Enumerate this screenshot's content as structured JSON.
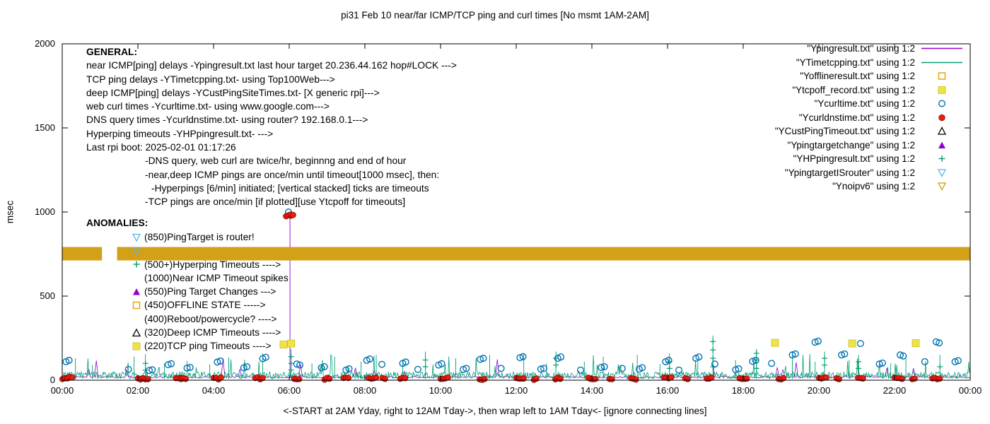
{
  "chart_data": {
    "type": "scatter",
    "title": "pi31 Feb 10  near/far ICMP/TCP ping and curl times [No msmt 1AM-2AM]",
    "xlabel": "<-START at 2AM Yday, right to 12AM Tday->, then wrap left to 1AM Tday<- [ignore connecting lines]",
    "ylabel": "msec",
    "xlim": [
      0,
      24
    ],
    "ylim": [
      0,
      2000
    ],
    "grid": false,
    "legend_position": "inside top-right",
    "x_ticks": [
      {
        "h": 0,
        "label": "00:00"
      },
      {
        "h": 2,
        "label": "02:00"
      },
      {
        "h": 4,
        "label": "04:00"
      },
      {
        "h": 6,
        "label": "06:00"
      },
      {
        "h": 8,
        "label": "08:00"
      },
      {
        "h": 10,
        "label": "10:00"
      },
      {
        "h": 12,
        "label": "12:00"
      },
      {
        "h": 14,
        "label": "14:00"
      },
      {
        "h": 16,
        "label": "16:00"
      },
      {
        "h": 18,
        "label": "18:00"
      },
      {
        "h": 20,
        "label": "20:00"
      },
      {
        "h": 22,
        "label": "22:00"
      },
      {
        "h": 24,
        "label": "00:00"
      }
    ],
    "y_ticks": [
      0,
      500,
      1000,
      1500,
      2000
    ],
    "series": {
      "ping_line": {
        "name": "Ypingresult near ICMP ping delay line",
        "color": "#9400d3",
        "baseline": 14,
        "noise": 9,
        "spikes": [
          [
            6.02,
            985
          ],
          [
            17.22,
            88
          ]
        ]
      },
      "tcp_line": {
        "name": "YTimetcpping TCP ping delay line",
        "color": "#009e73",
        "baseline": 8,
        "noise": 42,
        "spikes": [
          [
            0.35,
            130
          ],
          [
            0.8,
            90
          ],
          [
            1.9,
            140
          ],
          [
            2.2,
            155
          ],
          [
            2.7,
            100
          ],
          [
            3.3,
            115
          ],
          [
            3.9,
            95
          ],
          [
            4.4,
            135
          ],
          [
            5.3,
            160
          ],
          [
            6.05,
            185
          ],
          [
            6.6,
            100
          ],
          [
            7.2,
            140
          ],
          [
            7.9,
            110
          ],
          [
            8.3,
            150
          ],
          [
            9.0,
            100
          ],
          [
            9.6,
            170
          ],
          [
            10.4,
            130
          ],
          [
            11.3,
            150
          ],
          [
            12.2,
            160
          ],
          [
            12.8,
            100
          ],
          [
            13.05,
            170
          ],
          [
            13.8,
            110
          ],
          [
            14.3,
            140
          ],
          [
            15.2,
            150
          ],
          [
            15.8,
            95
          ],
          [
            16.05,
            160
          ],
          [
            16.8,
            110
          ],
          [
            17.2,
            265
          ],
          [
            17.8,
            120
          ],
          [
            18.35,
            185
          ],
          [
            19.3,
            150
          ],
          [
            19.9,
            110
          ],
          [
            20.15,
            170
          ],
          [
            20.8,
            120
          ],
          [
            21.05,
            150
          ],
          [
            21.9,
            100
          ],
          [
            22.3,
            140
          ],
          [
            23.2,
            150
          ]
        ]
      },
      "curl_circles": {
        "name": "Ycurltime web curl times",
        "color": "#0072b2",
        "points": [
          [
            0.1,
            110
          ],
          [
            0.18,
            118
          ],
          [
            1.75,
            64
          ],
          [
            2.3,
            58
          ],
          [
            2.38,
            62
          ],
          [
            2.8,
            92
          ],
          [
            2.88,
            98
          ],
          [
            3.3,
            72
          ],
          [
            3.38,
            76
          ],
          [
            4.1,
            108
          ],
          [
            4.18,
            114
          ],
          [
            4.8,
            74
          ],
          [
            4.88,
            80
          ],
          [
            5.3,
            128
          ],
          [
            5.38,
            136
          ],
          [
            5.98,
            1000
          ],
          [
            6.2,
            96
          ],
          [
            6.28,
            90
          ],
          [
            6.85,
            74
          ],
          [
            6.93,
            80
          ],
          [
            7.5,
            60
          ],
          [
            7.58,
            68
          ],
          [
            8.05,
            118
          ],
          [
            8.13,
            126
          ],
          [
            8.45,
            94
          ],
          [
            9.0,
            100
          ],
          [
            9.08,
            108
          ],
          [
            9.4,
            64
          ],
          [
            9.95,
            90
          ],
          [
            10.03,
            98
          ],
          [
            10.6,
            64
          ],
          [
            10.68,
            70
          ],
          [
            11.05,
            124
          ],
          [
            11.13,
            130
          ],
          [
            11.6,
            70
          ],
          [
            12.1,
            134
          ],
          [
            12.18,
            140
          ],
          [
            12.65,
            66
          ],
          [
            12.73,
            70
          ],
          [
            13.1,
            130
          ],
          [
            13.18,
            138
          ],
          [
            13.7,
            60
          ],
          [
            14.25,
            76
          ],
          [
            14.33,
            80
          ],
          [
            14.8,
            70
          ],
          [
            15.25,
            66
          ],
          [
            15.33,
            74
          ],
          [
            15.95,
            110
          ],
          [
            16.03,
            118
          ],
          [
            16.3,
            60
          ],
          [
            16.75,
            130
          ],
          [
            16.83,
            138
          ],
          [
            17.25,
            96
          ],
          [
            17.8,
            62
          ],
          [
            17.88,
            68
          ],
          [
            18.25,
            112
          ],
          [
            18.33,
            118
          ],
          [
            18.75,
            100
          ],
          [
            19.3,
            150
          ],
          [
            19.38,
            156
          ],
          [
            19.9,
            226
          ],
          [
            19.98,
            232
          ],
          [
            20.6,
            150
          ],
          [
            20.68,
            156
          ],
          [
            21.1,
            218
          ],
          [
            21.6,
            96
          ],
          [
            21.68,
            102
          ],
          [
            22.15,
            150
          ],
          [
            22.23,
            144
          ],
          [
            22.8,
            110
          ],
          [
            23.1,
            228
          ],
          [
            23.18,
            222
          ],
          [
            23.6,
            110
          ],
          [
            23.68,
            116
          ]
        ]
      },
      "dns_dots": {
        "name": "Ycurldnstime DNS query times",
        "color": "#e51e10",
        "clusters": [
          [
            0.1,
            10,
            4
          ],
          [
            0.2,
            14,
            3
          ],
          [
            2.1,
            8,
            4
          ],
          [
            2.2,
            12,
            3
          ],
          [
            3.1,
            10,
            4
          ],
          [
            3.2,
            8,
            3
          ],
          [
            4.1,
            10,
            4
          ],
          [
            5.2,
            12,
            4
          ],
          [
            5.98,
            975,
            3
          ],
          [
            6.07,
            985,
            2
          ],
          [
            6.2,
            10,
            3
          ],
          [
            7.0,
            8,
            3
          ],
          [
            7.5,
            12,
            3
          ],
          [
            8.2,
            10,
            4
          ],
          [
            8.5,
            8,
            2
          ],
          [
            9.0,
            10,
            3
          ],
          [
            10.1,
            12,
            4
          ],
          [
            11.1,
            8,
            3
          ],
          [
            12.1,
            10,
            4
          ],
          [
            12.5,
            8,
            2
          ],
          [
            13.1,
            10,
            3
          ],
          [
            14.0,
            12,
            4
          ],
          [
            14.5,
            8,
            2
          ],
          [
            15.1,
            10,
            3
          ],
          [
            16.0,
            12,
            4
          ],
          [
            16.5,
            8,
            2
          ],
          [
            17.1,
            10,
            3
          ],
          [
            18.0,
            12,
            4
          ],
          [
            19.0,
            10,
            3
          ],
          [
            20.1,
            12,
            4
          ],
          [
            20.5,
            8,
            2
          ],
          [
            21.1,
            10,
            3
          ],
          [
            22.1,
            12,
            4
          ],
          [
            22.5,
            8,
            2
          ],
          [
            23.1,
            10,
            4
          ]
        ]
      },
      "tcpoff_squares": {
        "name": "Ytcpoff_record TCP ping timeouts",
        "color": "#f0e442",
        "points": [
          [
            5.85,
            212
          ],
          [
            6.05,
            218
          ],
          [
            18.84,
            222
          ],
          [
            20.88,
            218
          ],
          [
            22.56,
            220
          ]
        ]
      },
      "hyperping": {
        "name": "YHPpingresult hyperping timeout tick stacks",
        "color": "#009e73",
        "stacks": [
          [
            2.2,
            [
              60,
              100
            ]
          ],
          [
            6.05,
            [
              60,
              100,
              140
            ]
          ],
          [
            9.6,
            [
              80,
              120
            ]
          ],
          [
            13.05,
            [
              90,
              130
            ]
          ],
          [
            16.05,
            [
              70,
              110
            ]
          ],
          [
            17.2,
            [
              80,
              130,
              180,
              230
            ]
          ],
          [
            18.35,
            [
              70,
              120,
              160
            ]
          ],
          [
            20.15,
            [
              90,
              130
            ]
          ],
          [
            21.05,
            [
              70,
              110
            ]
          ],
          [
            23.2,
            [
              80
            ]
          ]
        ]
      },
      "noipv6_band": {
        "name": "Ynoipv6 continuous marker band",
        "color": "#D4A017",
        "from_msec": 712,
        "to_msec": 792,
        "gaps": [
          [
            1.05,
            1.45
          ]
        ]
      }
    }
  },
  "general": {
    "lines": [
      {
        "text": "GENERAL:",
        "bold": true,
        "indent": 0
      },
      {
        "text": "near ICMP[ping] delays -Ypingresult.txt last hour target 20.236.44.162 hop#LOCK --->",
        "bold": false,
        "indent": 0
      },
      {
        "text": "TCP ping delays -YTimetcpping.txt- using Top100Web--->",
        "bold": false,
        "indent": 0
      },
      {
        "text": "deep ICMP[ping] delays -YCustPingSiteTimes.txt- [X generic rpi]--->",
        "bold": false,
        "indent": 0
      },
      {
        "text": "web curl times -Ycurltime.txt- using www.google.com--->",
        "bold": false,
        "indent": 0
      },
      {
        "text": "DNS query times -Ycurldnstime.txt- using router? 192.168.0.1--->",
        "bold": false,
        "indent": 0
      },
      {
        "text": "Hyperping timeouts -YHPpingresult.txt- --->",
        "bold": false,
        "indent": 0
      },
      {
        "text": "Last rpi boot: 2025-02-01 01:17:26",
        "bold": false,
        "indent": 0
      },
      {
        "text": "-DNS query, web curl are twice/hr, beginnng and end of hour",
        "bold": false,
        "indent": 83
      },
      {
        "text": "-near,deep ICMP pings are once/min until timeout[1000 msec], then:",
        "bold": false,
        "indent": 83
      },
      {
        "text": "-Hyperpings [6/min] initiated; [vertical stacked] ticks are timeouts",
        "bold": false,
        "indent": 92
      },
      {
        "text": "-TCP pings are once/min [if plotted][use Ytcpoff for timeouts]",
        "bold": false,
        "indent": 83
      }
    ]
  },
  "anomalies": {
    "header": "ANOMALIES:",
    "rows": [
      {
        "marker": "triangle-down-open-icon",
        "color": "#56b4e9",
        "text": "(850)PingTarget is router!"
      },
      {
        "marker": "triangle-down-open-icon",
        "color": "#56b4e9",
        "text": ""
      },
      {
        "marker": "plus-icon",
        "color": "#009e73",
        "text": "(500+)Hyperping Timeouts ---->"
      },
      {
        "marker": "none",
        "color": "#000000",
        "text": "(1000)Near ICMP Timeout spikes"
      },
      {
        "marker": "triangle-filled-icon",
        "color": "#9400d3",
        "text": "(550)Ping Target Changes --->"
      },
      {
        "marker": "square-open-icon",
        "color": "#e69f00",
        "text": "(450)OFFLINE STATE ----->"
      },
      {
        "marker": "none",
        "color": "#000000",
        "text": "(400)Reboot/powercycle? ---->"
      },
      {
        "marker": "triangle-open-icon",
        "color": "#000000",
        "text": "(320)Deep ICMP Timeouts ---->"
      },
      {
        "marker": "square-filled-icon",
        "color": "#f0e442",
        "text": "(220)TCP ping Timeouts ---->"
      }
    ]
  },
  "legend": {
    "items": [
      {
        "label": "\"Ypingresult.txt\" using 1:2",
        "sample": "line",
        "color": "#9400d3"
      },
      {
        "label": "\"YTimetcpping.txt\" using 1:2",
        "sample": "line",
        "color": "#009e73"
      },
      {
        "label": "\"Yofflineresult.txt\" using 1:2",
        "sample": "square-open",
        "color": "#e69f00"
      },
      {
        "label": "\"Ytcpoff_record.txt\" using 1:2",
        "sample": "square-filled",
        "color": "#f0e442"
      },
      {
        "label": "\"Ycurltime.txt\" using 1:2",
        "sample": "circle-open",
        "color": "#0072b2"
      },
      {
        "label": "\"Ycurldnstime.txt\" using 1:2",
        "sample": "circle-filled",
        "color": "#e51e10"
      },
      {
        "label": "\"YCustPingTimeout.txt\" using 1:2",
        "sample": "triangle-open",
        "color": "#000000"
      },
      {
        "label": "\"Ypingtargetchange\" using 1:2",
        "sample": "triangle-filled",
        "color": "#9400d3"
      },
      {
        "label": "\"YHPpingresult.txt\" using 1:2",
        "sample": "plus",
        "color": "#009e73"
      },
      {
        "label": "\"YpingtargetISrouter\" using 1:2",
        "sample": "triangle-down-open",
        "color": "#56b4e9"
      },
      {
        "label": "\"Ynoipv6\" using 1:2",
        "sample": "triangle-down-open",
        "color": "#c8a000"
      }
    ]
  }
}
